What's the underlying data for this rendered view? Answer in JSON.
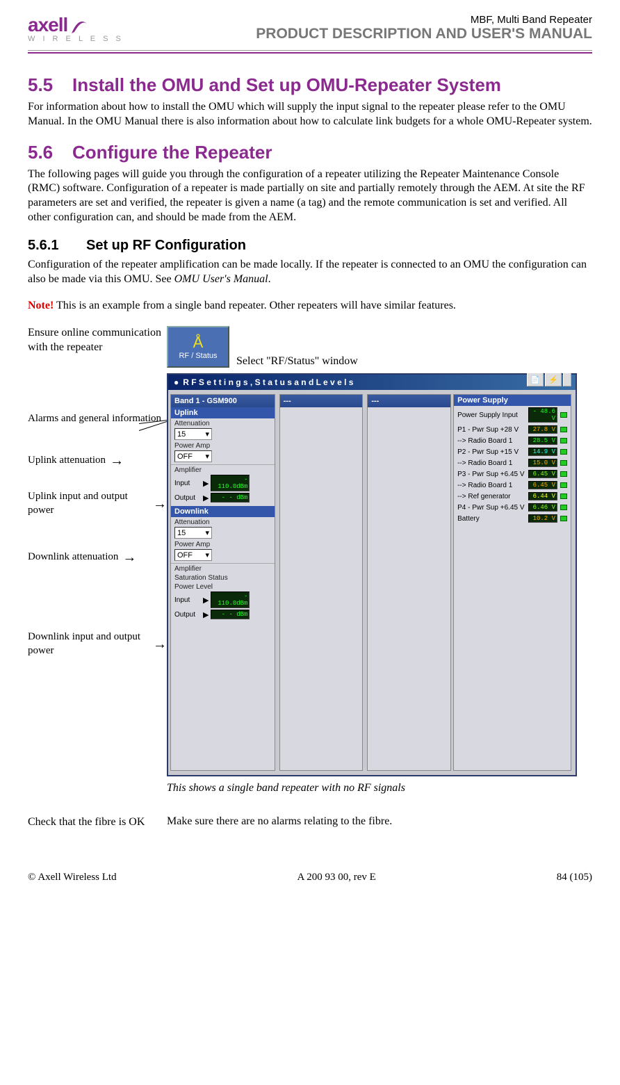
{
  "header": {
    "logo_name": "axell",
    "logo_sub": "W I R E L E S S",
    "product": "MBF, Multi Band Repeater",
    "manual": "PRODUCT DESCRIPTION AND USER'S MANUAL"
  },
  "sections": {
    "s55_num": "5.5",
    "s55_title": "Install the OMU and Set up OMU-Repeater System",
    "s55_body": "For information about how to install the OMU which will supply the input signal to the repeater please refer to the OMU Manual. In the OMU Manual there is also information about how to calculate link budgets for a whole OMU-Repeater system.",
    "s56_num": "5.6",
    "s56_title": "Configure the Repeater",
    "s56_body": "The following pages will guide you through the configuration of a repeater utilizing the Repeater Maintenance Console (RMC) software. Configuration of a repeater is made partially on site and partially remotely through the AEM. At site the RF parameters are set and verified, the repeater is given a name (a tag) and the remote communication is set and verified. All other configuration can, and should be made from the AEM.",
    "s561_num": "5.6.1",
    "s561_title": "Set up RF Configuration",
    "s561_body": "Configuration of the repeater amplification can be made locally. If the repeater is connected to an OMU the configuration can also be made via this OMU. See ",
    "s561_ref": "OMU User's Manual",
    "s561_body_end": ".",
    "note_label": "Note!",
    "note_text": " This is an example from a single band repeater. Other repeaters will have similar features."
  },
  "steps": {
    "ensure": "Ensure online communication with the repeater",
    "select_rf": "Select \"RF/Status\" window",
    "rf_icon": "RF / Status",
    "check_fibre_left": "Check that the fibre is OK",
    "check_fibre_right": "Make sure there are no alarms relating to the fibre."
  },
  "annotations": {
    "alarms": "Alarms and general information",
    "uplink_atten": "Uplink attenuation",
    "uplink_power": "Uplink input and output power",
    "downlink_atten": "Downlink attenuation",
    "downlink_power": "Downlink input and output power"
  },
  "rmc": {
    "title": "R F  S e t t i n g s ,  S t a t u s  a n d  L e v e l s",
    "band_label": "Band 1 - GSM900",
    "empty_band": "---",
    "uplink_label": "Uplink",
    "downlink_label": "Downlink",
    "attenuation_label": "Attenuation",
    "attenuation_val": "15",
    "poweramp_label": "Power Amp",
    "poweramp_val": "OFF",
    "amplifier_label": "Amplifier",
    "input_label": "Input",
    "output_label": "Output",
    "input_val": "- 110.0dBm",
    "output_val": "- -   dBm",
    "saturation_label": "Saturation Status",
    "powerlevel_label": "Power Level",
    "power_supply": {
      "title": "Power Supply",
      "rows": [
        {
          "label": "Power Supply Input",
          "val": "- 48.6 V",
          "color": "#2f2"
        },
        {
          "label": "P1 - Pwr Sup +28 V",
          "val": "27.8 V",
          "color": "#fa0"
        },
        {
          "label": "--> Radio Board 1",
          "val": "28.5 V",
          "color": "#2f2"
        },
        {
          "label": "P2 - Pwr Sup +15 V",
          "val": "14.9 V",
          "color": "#2ff"
        },
        {
          "label": "--> Radio Board 1",
          "val": "15.0 V",
          "color": "#fa0"
        },
        {
          "label": "P3 - Pwr Sup +6.45 V",
          "val": "6.45 V",
          "color": "#8f2"
        },
        {
          "label": "--> Radio Board 1",
          "val": "6.45 V",
          "color": "#fa0"
        },
        {
          "label": "--> Ref generator",
          "val": "6.44 V",
          "color": "#ff2"
        },
        {
          "label": "P4 - Pwr Sup +6.45 V",
          "val": "6.46 V",
          "color": "#8f2"
        },
        {
          "label": "Battery",
          "val": "10.2 V",
          "color": "#fa0"
        }
      ]
    }
  },
  "caption": "This shows a single band repeater with no RF signals",
  "footer": {
    "left": "© Axell Wireless Ltd",
    "center": "A 200 93 00, rev E",
    "right": "84 (105)"
  },
  "colors": {
    "purple": "#8a2a8f",
    "grey": "#777777",
    "red": "#d00000",
    "win_blue": "#0a246a",
    "panel_blue": "#3355aa"
  }
}
